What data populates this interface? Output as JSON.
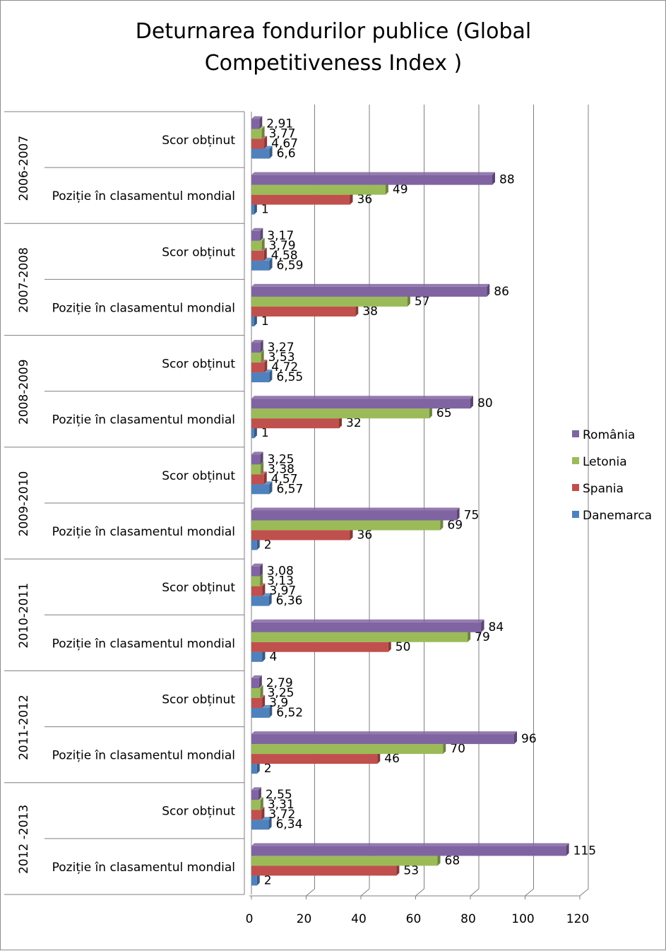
{
  "chart_data": {
    "type": "bar",
    "orientation": "horizontal",
    "title": "Deturnarea fondurilor publice (Global Competitiveness Index )",
    "title_lines": [
      "Deturnarea fondurilor publice (Global",
      "Competitiveness Index )"
    ],
    "xlim": [
      0,
      120
    ],
    "x_ticks": [
      "0",
      "20",
      "40",
      "60",
      "80",
      "100",
      "120"
    ],
    "grid": true,
    "legend_position": "right",
    "groups": [
      {
        "period": "2006-2007",
        "rows": [
          {
            "label": "Scor obținut",
            "values": [
              6.6,
              4.67,
              3.77,
              2.91
            ],
            "labels": [
              "6,6",
              "4,67",
              "3,77",
              "2,91"
            ]
          },
          {
            "label": "Poziție în clasamentul mondial",
            "values": [
              1,
              36,
              49,
              88
            ],
            "labels": [
              "1",
              "36",
              "49",
              "88"
            ]
          }
        ]
      },
      {
        "period": "2007-2008",
        "rows": [
          {
            "label": "Scor obținut",
            "values": [
              6.59,
              4.58,
              3.79,
              3.17
            ],
            "labels": [
              "6,59",
              "4,58",
              "3,79",
              "3,17"
            ]
          },
          {
            "label": "Poziție în clasamentul mondial",
            "values": [
              1,
              38,
              57,
              86
            ],
            "labels": [
              "1",
              "38",
              "57",
              "86"
            ]
          }
        ]
      },
      {
        "period": "2008-2009",
        "rows": [
          {
            "label": "Scor obținut",
            "values": [
              6.55,
              4.72,
              3.53,
              3.27
            ],
            "labels": [
              "6,55",
              "4,72",
              "3,53",
              "3,27"
            ]
          },
          {
            "label": "Poziție în clasamentul mondial",
            "values": [
              1,
              32,
              65,
              80
            ],
            "labels": [
              "1",
              "32",
              "65",
              "80"
            ]
          }
        ]
      },
      {
        "period": "2009-2010",
        "rows": [
          {
            "label": "Scor obținut",
            "values": [
              6.57,
              4.57,
              3.38,
              3.25
            ],
            "labels": [
              "6,57",
              "4,57",
              "3,38",
              "3,25"
            ]
          },
          {
            "label": "Poziție în clasamentul mondial",
            "values": [
              2,
              36,
              69,
              75
            ],
            "labels": [
              "2",
              "36",
              "69",
              "75"
            ]
          }
        ]
      },
      {
        "period": "2010-2011",
        "rows": [
          {
            "label": "Scor obținut",
            "values": [
              6.36,
              3.97,
              3.13,
              3.08
            ],
            "labels": [
              "6,36",
              "3,97",
              "3,13",
              "3,08"
            ]
          },
          {
            "label": "Poziție în clasamentul mondial",
            "values": [
              4,
              50,
              79,
              84
            ],
            "labels": [
              "4",
              "50",
              "79",
              "84"
            ]
          }
        ]
      },
      {
        "period": "2011-2012",
        "rows": [
          {
            "label": "Scor obținut",
            "values": [
              6.52,
              3.9,
              3.25,
              2.79
            ],
            "labels": [
              "6,52",
              "3,9",
              "3,25",
              "2,79"
            ]
          },
          {
            "label": "Poziție în clasamentul mondial",
            "values": [
              2,
              46,
              70,
              96
            ],
            "labels": [
              "2",
              "46",
              "70",
              "96"
            ]
          }
        ]
      },
      {
        "period": "2012 -2013",
        "rows": [
          {
            "label": "Scor obținut",
            "values": [
              6.34,
              3.72,
              3.31,
              2.55
            ],
            "labels": [
              "6,34",
              "3,72",
              "3,31",
              "2,55"
            ]
          },
          {
            "label": "Poziție în clasamentul mondial",
            "values": [
              2,
              53,
              68,
              115
            ],
            "labels": [
              "2",
              "53",
              "68",
              "115"
            ]
          }
        ]
      }
    ],
    "series": [
      {
        "name": "Danemarca",
        "color": "#4F81BD"
      },
      {
        "name": "Spania",
        "color": "#C0504D"
      },
      {
        "name": "Letonia",
        "color": "#9BBB59"
      },
      {
        "name": "România",
        "color": "#8064A2"
      }
    ],
    "legend_order": [
      "România",
      "Letonia",
      "Spania",
      "Danemarca"
    ]
  }
}
